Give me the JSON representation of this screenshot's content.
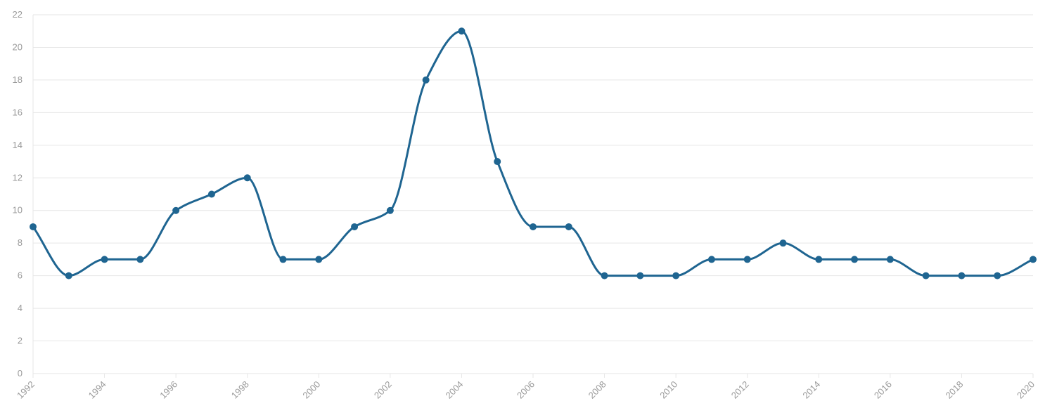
{
  "chart_data": {
    "type": "line",
    "title": "",
    "xlabel": "",
    "ylabel": "",
    "x": [
      1992,
      1993,
      1994,
      1995,
      1996,
      1997,
      1998,
      1999,
      2000,
      2001,
      2002,
      2003,
      2004,
      2005,
      2006,
      2007,
      2008,
      2009,
      2010,
      2011,
      2012,
      2013,
      2014,
      2015,
      2016,
      2017,
      2018,
      2019,
      2020
    ],
    "series": [
      {
        "name": "",
        "color": "#1f6591",
        "values": [
          9,
          6,
          7,
          7,
          10,
          11,
          12,
          7,
          7,
          9,
          10,
          18,
          21,
          13,
          9,
          9,
          6,
          6,
          6,
          7,
          7,
          8,
          7,
          7,
          7,
          6,
          6,
          6,
          7
        ]
      }
    ],
    "xlim": [
      1992,
      2020
    ],
    "ylim": [
      0,
      22
    ],
    "x_ticks": [
      "1992",
      "1994",
      "1996",
      "1998",
      "2000",
      "2002",
      "2004",
      "2006",
      "2008",
      "2010",
      "2012",
      "2014",
      "2016",
      "2018",
      "2020"
    ],
    "y_ticks": [
      "0",
      "2",
      "4",
      "6",
      "8",
      "10",
      "12",
      "14",
      "16",
      "18",
      "20",
      "22"
    ],
    "grid": "horizontal",
    "legend": "none",
    "curve": "smooth"
  }
}
